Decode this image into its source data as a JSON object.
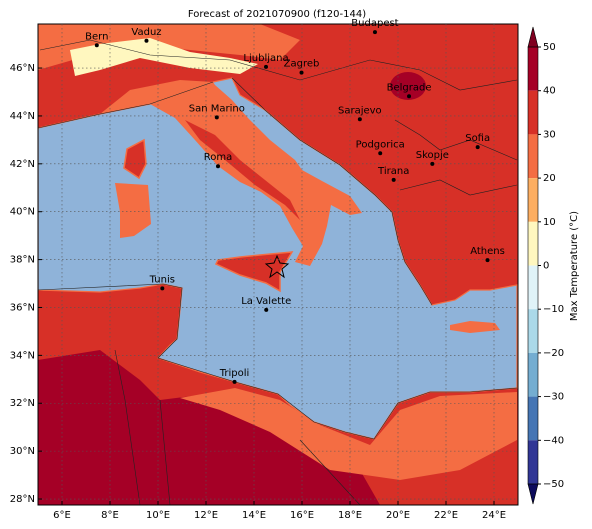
{
  "title": "Forecast of 2021070900 (f120-144)",
  "map": {
    "type": "map",
    "xlim": [
      5,
      25
    ],
    "ylim": [
      27.75,
      47.84
    ],
    "xticks": [
      {
        "value": 6,
        "label": "6°E"
      },
      {
        "value": 8,
        "label": "8°E"
      },
      {
        "value": 10,
        "label": "10°E"
      },
      {
        "value": 12,
        "label": "12°E"
      },
      {
        "value": 14,
        "label": "14°E"
      },
      {
        "value": 16,
        "label": "16°E"
      },
      {
        "value": 18,
        "label": "18°E"
      },
      {
        "value": 20,
        "label": "20°E"
      },
      {
        "value": 22,
        "label": "22°E"
      },
      {
        "value": 24,
        "label": "24°E"
      }
    ],
    "yticks": [
      {
        "value": 28,
        "label": "28°N"
      },
      {
        "value": 30,
        "label": "30°N"
      },
      {
        "value": 32,
        "label": "32°N"
      },
      {
        "value": 34,
        "label": "34°N"
      },
      {
        "value": 36,
        "label": "36°N"
      },
      {
        "value": 38,
        "label": "38°N"
      },
      {
        "value": 40,
        "label": "40°N"
      },
      {
        "value": 42,
        "label": "42°N"
      },
      {
        "value": 44,
        "label": "44°N"
      },
      {
        "value": 46,
        "label": "46°N"
      }
    ],
    "grid": true,
    "cities": [
      {
        "name": "Bern",
        "lon": 7.45,
        "lat": 46.95
      },
      {
        "name": "Vaduz",
        "lon": 9.52,
        "lat": 47.14
      },
      {
        "name": "Budapest",
        "lon": 19.04,
        "lat": 47.5
      },
      {
        "name": "Ljubljana",
        "lon": 14.5,
        "lat": 46.05
      },
      {
        "name": "Zagreb",
        "lon": 15.98,
        "lat": 45.81
      },
      {
        "name": "Belgrade",
        "lon": 20.46,
        "lat": 44.82
      },
      {
        "name": "San Marino",
        "lon": 12.45,
        "lat": 43.94
      },
      {
        "name": "Sarajevo",
        "lon": 18.41,
        "lat": 43.86
      },
      {
        "name": "Podgorica",
        "lon": 19.26,
        "lat": 42.44
      },
      {
        "name": "Sofia",
        "lon": 23.32,
        "lat": 42.7
      },
      {
        "name": "Skopje",
        "lon": 21.43,
        "lat": 42.0
      },
      {
        "name": "Roma",
        "lon": 12.5,
        "lat": 41.9
      },
      {
        "name": "Tirana",
        "lon": 19.82,
        "lat": 41.33
      },
      {
        "name": "Athens",
        "lon": 23.73,
        "lat": 37.98
      },
      {
        "name": "Tunis",
        "lon": 10.18,
        "lat": 36.8
      },
      {
        "name": "La Valette",
        "lon": 14.51,
        "lat": 35.9
      },
      {
        "name": "Tripoli",
        "lon": 13.19,
        "lat": 32.89
      }
    ],
    "colorbar": {
      "label": "Max Temperature (°C)",
      "clim": [
        -50,
        50
      ],
      "ticks": [
        50,
        40,
        30,
        20,
        10,
        0,
        {
          "value": -10,
          "label": "−10"
        },
        {
          "value": -20,
          "label": "−20"
        },
        {
          "value": -30,
          "label": "−30"
        },
        {
          "value": -40,
          "label": "−40"
        },
        {
          "value": -50,
          "label": "−50"
        }
      ],
      "colors": [
        "#a50026",
        "#d73027",
        "#f46d43",
        "#fdae61",
        "#fff7bf",
        "#e0f3f8",
        "#abd9e9",
        "#74add1",
        "#4575b4",
        "#313695"
      ],
      "extend_colors": [
        "#7f0020",
        "#0d0b5c"
      ]
    }
  }
}
